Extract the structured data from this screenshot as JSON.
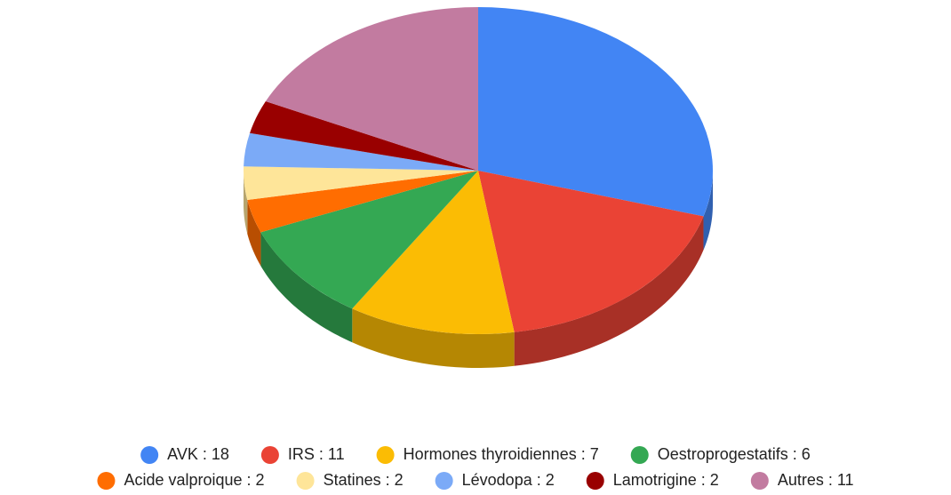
{
  "chart_data": {
    "type": "pie",
    "style": "3d",
    "categories": [
      "AVK : 18",
      "IRS : 11",
      "Hormones thyroidiennes : 7",
      "Oestroprogestatifs : 6",
      "Acide valproique : 2",
      "Statines : 2",
      "Lévodopa : 2",
      "Lamotrigine : 2",
      "Autres : 11"
    ],
    "values": [
      18,
      11,
      7,
      6,
      2,
      2,
      2,
      2,
      11
    ],
    "colors": [
      "#4285f4",
      "#ea4335",
      "#fbbc04",
      "#34a853",
      "#ff6d01",
      "#fee599",
      "#7baaf7",
      "#990000",
      "#c27ba0"
    ],
    "legend": "bottom"
  }
}
